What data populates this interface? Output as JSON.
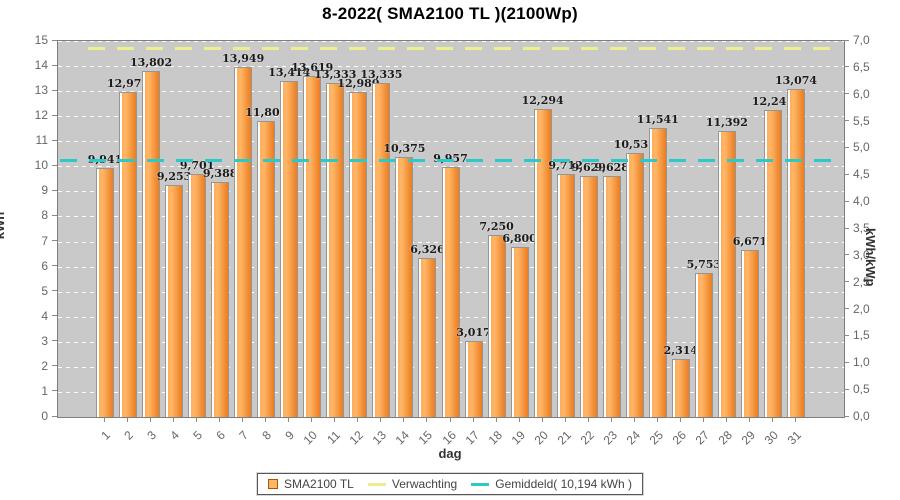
{
  "title": "8-2022( SMA2100 TL )(2100Wp)",
  "chart_data": {
    "type": "bar",
    "title": "8-2022( SMA2100 TL )(2100Wp)",
    "xlabel": "dag",
    "left_axis": {
      "label": "kWh",
      "min": 0,
      "max": 15,
      "tick_step": 1
    },
    "right_axis": {
      "label": "kWh/kWp",
      "min": 0,
      "max": 7,
      "tick_step": 0.5,
      "decimal_separator": ","
    },
    "grid": true,
    "legend_position": "bottom",
    "categories": [
      "1",
      "2",
      "3",
      "4",
      "5",
      "6",
      "7",
      "8",
      "9",
      "10",
      "11",
      "12",
      "13",
      "14",
      "15",
      "16",
      "17",
      "18",
      "19",
      "20",
      "21",
      "22",
      "23",
      "24",
      "25",
      "26",
      "27",
      "28",
      "29",
      "30",
      "31"
    ],
    "series": [
      {
        "name": "SMA2100 TL",
        "values": [
          9.941,
          12.978,
          13.802,
          9.253,
          9.701,
          9.388,
          13.949,
          11.804,
          13.414,
          13.619,
          13.333,
          12.98,
          13.335,
          10.375,
          6.326,
          9.957,
          3.017,
          7.25,
          6.8,
          12.294,
          9.712,
          9.629,
          9.628,
          10.535,
          11.541,
          2.314,
          5.753,
          11.392,
          6.671,
          12.248,
          13.074
        ],
        "value_labels": [
          "9,941",
          "12,978",
          "13,802",
          "9,253",
          "9,701",
          "9,388",
          "13,949",
          "11,804",
          "13,414",
          "13,619",
          "13,333",
          "12,980",
          "13,335",
          "10,375",
          "6,326",
          "9,957",
          "3,017",
          "7,250",
          "6,800",
          "12,294",
          "9,712",
          "9,629",
          "9,628",
          "10,535",
          "11,541",
          "2,314",
          "5,753",
          "11,392",
          "6,671",
          "12,248",
          "13,074"
        ]
      }
    ],
    "reference_lines": [
      {
        "name": "Verwachting",
        "value_kwh": 14.7,
        "style": "dashed",
        "color": "#eeee8e"
      },
      {
        "name": "Gemiddeld",
        "value_kwh": 10.194,
        "style": "dashed",
        "color": "#2dc8c8",
        "legend_label": "Gemiddeld( 10,194 kWh )"
      }
    ]
  },
  "legend": {
    "items": [
      {
        "label": "SMA2100 TL",
        "swatch": "orange-square"
      },
      {
        "label": "Verwachting",
        "swatch": "yellow-line"
      },
      {
        "label": "Gemiddeld( 10,194 kWh )",
        "swatch": "cyan-line"
      }
    ]
  },
  "colors": {
    "bar_light": "#ffad5c",
    "bar_mid": "#ffb667",
    "bar_dark": "#ec7d20",
    "bar_border": "#969696",
    "bar_highlight": "#ffffff",
    "plot_bg": "#c9c9c9",
    "grid": "#ffffff",
    "verwachting_line": "#eeee8e",
    "gemiddeld_line": "#2dc8c8",
    "value_label_text": "#1c1c1c",
    "axis_text": "#666666",
    "title_text": "#000000"
  }
}
